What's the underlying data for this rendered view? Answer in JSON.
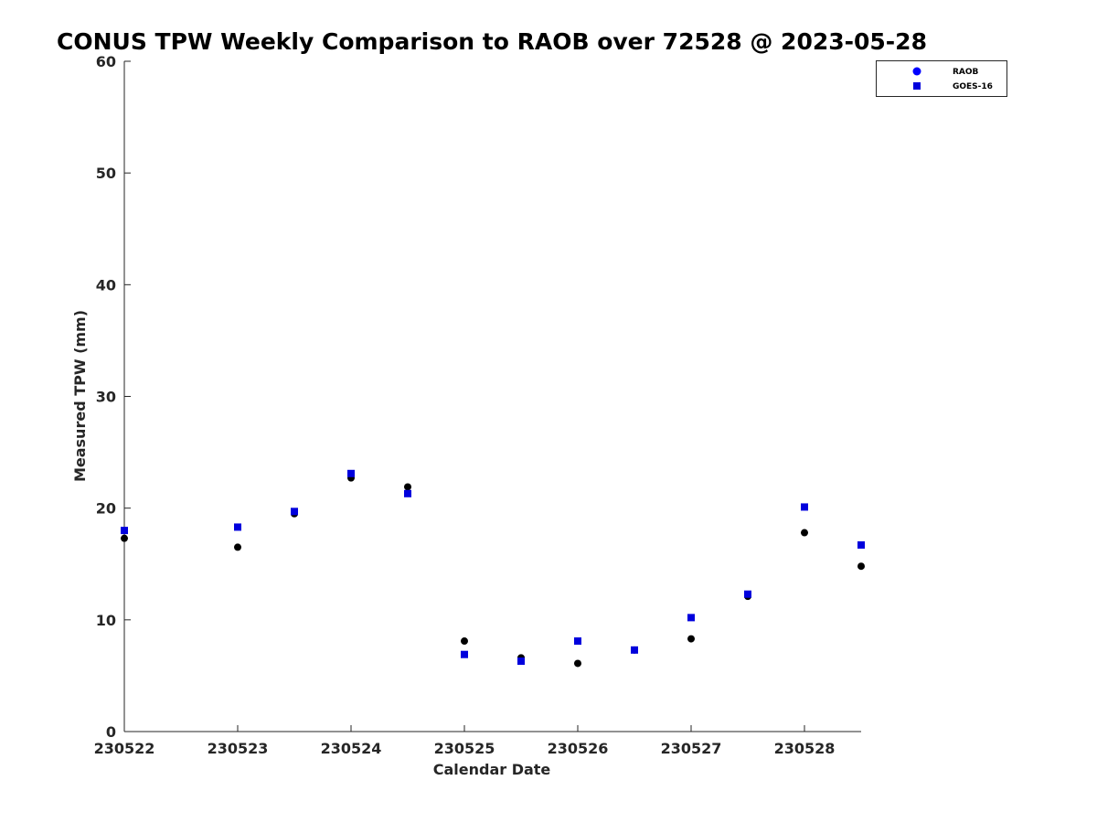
{
  "chart_data": {
    "type": "scatter",
    "title": "CONUS TPW Weekly Comparison to RAOB over 72528 @ 2023-05-28",
    "xlabel": "Calendar Date",
    "ylabel": "Measured TPW (mm)",
    "xlim": [
      0,
      6.5
    ],
    "ylim": [
      0,
      60
    ],
    "x_tick_values": [
      0,
      1,
      2,
      3,
      4,
      5,
      6
    ],
    "x_tick_labels": [
      "230522",
      "230523",
      "230524",
      "230525",
      "230526",
      "230527",
      "230528"
    ],
    "y_ticks": [
      0,
      10,
      20,
      30,
      40,
      50,
      60
    ],
    "grid": false,
    "legend_position": "top-right",
    "series": [
      {
        "name": "RAOB",
        "marker": "circle",
        "color": "#000000",
        "legend_color": "#0000ff",
        "points": [
          {
            "x": 0.0,
            "y": 17.3
          },
          {
            "x": 1.0,
            "y": 16.5
          },
          {
            "x": 1.5,
            "y": 19.5
          },
          {
            "x": 2.0,
            "y": 22.7
          },
          {
            "x": 2.5,
            "y": 21.9
          },
          {
            "x": 3.0,
            "y": 8.1
          },
          {
            "x": 3.5,
            "y": 6.6
          },
          {
            "x": 4.0,
            "y": 6.1
          },
          {
            "x": 4.5,
            "y": 7.3
          },
          {
            "x": 5.0,
            "y": 8.3
          },
          {
            "x": 5.5,
            "y": 12.1
          },
          {
            "x": 6.0,
            "y": 17.8
          },
          {
            "x": 6.5,
            "y": 14.8
          }
        ]
      },
      {
        "name": "GOES-16",
        "marker": "square",
        "color": "#0000dd",
        "legend_color": "#0000dd",
        "points": [
          {
            "x": 0.0,
            "y": 18.0
          },
          {
            "x": 1.0,
            "y": 18.3
          },
          {
            "x": 1.5,
            "y": 19.7
          },
          {
            "x": 2.0,
            "y": 23.1
          },
          {
            "x": 2.5,
            "y": 21.3
          },
          {
            "x": 3.0,
            "y": 6.9
          },
          {
            "x": 3.5,
            "y": 6.3
          },
          {
            "x": 4.0,
            "y": 8.1
          },
          {
            "x": 4.5,
            "y": 7.3
          },
          {
            "x": 5.0,
            "y": 10.2
          },
          {
            "x": 5.5,
            "y": 12.3
          },
          {
            "x": 6.0,
            "y": 20.1
          },
          {
            "x": 6.5,
            "y": 16.7
          }
        ]
      }
    ]
  }
}
